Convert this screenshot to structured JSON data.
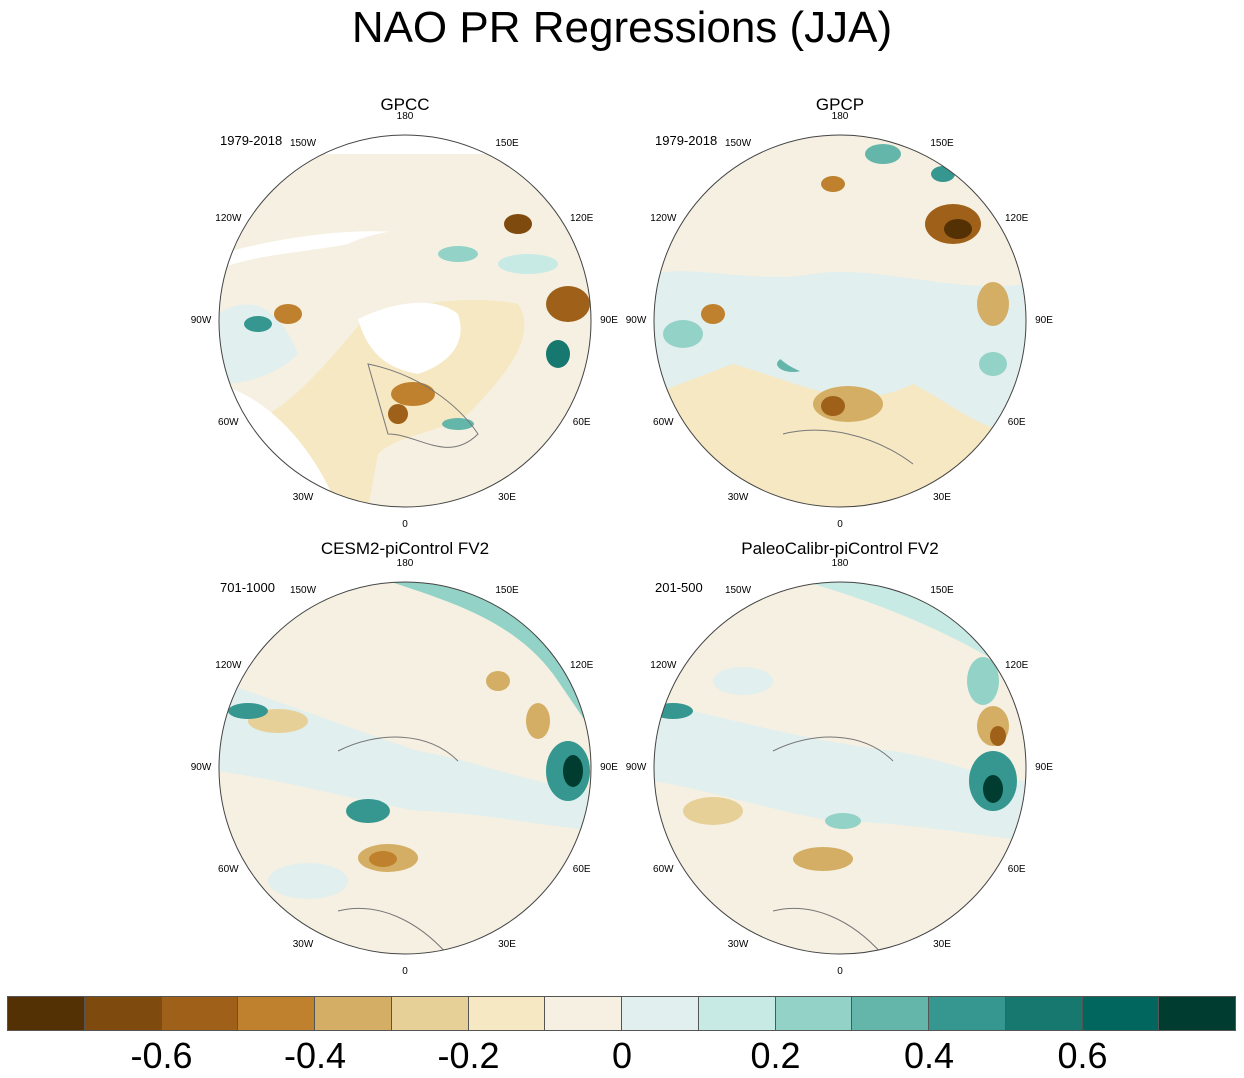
{
  "title": "NAO PR Regressions (JJA)",
  "longitude_labels": [
    "180",
    "150E",
    "120E",
    "90E",
    "60E",
    "30E",
    "0",
    "30W",
    "60W",
    "90W",
    "120W",
    "150W"
  ],
  "panels": [
    {
      "name": "GPCC",
      "period": "1979-2018"
    },
    {
      "name": "GPCP",
      "period": "1979-2018"
    },
    {
      "name": "CESM2-piControl FV2",
      "period": "701-1000"
    },
    {
      "name": "PaleoCalibr-piControl FV2",
      "period": "201-500"
    }
  ],
  "colorbar": {
    "colors": [
      "#543005",
      "#7f4a0d",
      "#9f6119",
      "#bf812d",
      "#d4ae64",
      "#e7d098",
      "#f6e8c3",
      "#f5f0e2",
      "#e1efee",
      "#c7eae5",
      "#93d2c7",
      "#64b6ab",
      "#35978f",
      "#17786f",
      "#01665e",
      "#003c30"
    ],
    "tick_labels": [
      "-0.6",
      "-0.4",
      "-0.2",
      "0",
      "0.2",
      "0.4",
      "0.6"
    ]
  },
  "palette": {
    "land_outline": "#777777",
    "border": "#444444",
    "missing": "#ffffff"
  }
}
